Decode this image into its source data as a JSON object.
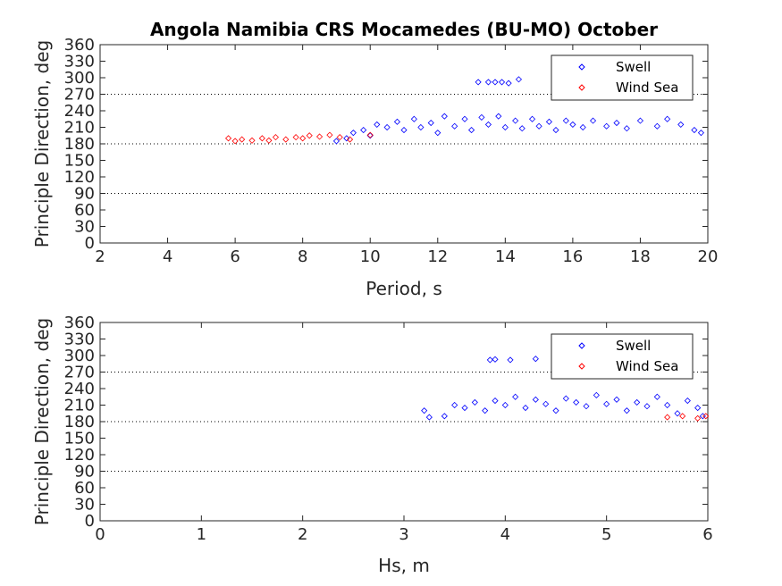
{
  "chart_data": {
    "title": "Angola Namibia CRS Mocamedes (BU-MO) October",
    "legend_entries": [
      "Swell",
      "Wind Sea"
    ],
    "colors": {
      "swell": "#0000ff",
      "wind_sea": "#ff0000",
      "axis": "#262626",
      "reference_line": "#000000"
    },
    "legend_placement": "top-right",
    "grid": "off",
    "reference_lines_y": [
      90,
      180,
      270
    ],
    "panels": [
      {
        "type": "scatter",
        "xlabel": "Period, s",
        "ylabel": "Principle Direction, deg",
        "xlim": [
          2,
          20
        ],
        "ylim": [
          0,
          360
        ],
        "xticks": [
          2,
          4,
          6,
          8,
          10,
          12,
          14,
          16,
          18,
          20
        ],
        "yticks": [
          0,
          30,
          60,
          90,
          120,
          150,
          180,
          210,
          240,
          270,
          300,
          330,
          360
        ],
        "series": [
          {
            "name": "Swell",
            "color": "#0000ff",
            "points": [
              [
                9.0,
                185
              ],
              [
                9.3,
                190
              ],
              [
                9.5,
                200
              ],
              [
                9.8,
                205
              ],
              [
                10.0,
                195
              ],
              [
                10.2,
                215
              ],
              [
                10.5,
                210
              ],
              [
                10.8,
                220
              ],
              [
                11.0,
                205
              ],
              [
                11.3,
                225
              ],
              [
                11.5,
                210
              ],
              [
                11.8,
                218
              ],
              [
                12.0,
                200
              ],
              [
                12.2,
                230
              ],
              [
                12.5,
                212
              ],
              [
                12.8,
                225
              ],
              [
                13.0,
                205
              ],
              [
                13.3,
                228
              ],
              [
                13.5,
                215
              ],
              [
                13.8,
                230
              ],
              [
                14.0,
                210
              ],
              [
                14.3,
                222
              ],
              [
                14.5,
                208
              ],
              [
                14.8,
                225
              ],
              [
                15.0,
                212
              ],
              [
                15.3,
                220
              ],
              [
                15.5,
                205
              ],
              [
                15.8,
                222
              ],
              [
                16.0,
                215
              ],
              [
                16.3,
                210
              ],
              [
                16.6,
                222
              ],
              [
                17.0,
                212
              ],
              [
                17.3,
                218
              ],
              [
                17.6,
                208
              ],
              [
                18.0,
                222
              ],
              [
                18.5,
                212
              ],
              [
                18.8,
                225
              ],
              [
                19.2,
                215
              ],
              [
                19.6,
                205
              ],
              [
                19.8,
                200
              ],
              [
                13.2,
                292
              ],
              [
                13.5,
                292
              ],
              [
                13.7,
                292
              ],
              [
                13.9,
                292
              ],
              [
                14.1,
                290
              ],
              [
                14.4,
                297
              ]
            ]
          },
          {
            "name": "Wind Sea",
            "color": "#ff0000",
            "points": [
              [
                5.8,
                190
              ],
              [
                6.0,
                185
              ],
              [
                6.2,
                188
              ],
              [
                6.5,
                186
              ],
              [
                6.8,
                190
              ],
              [
                7.0,
                186
              ],
              [
                7.2,
                192
              ],
              [
                7.5,
                188
              ],
              [
                7.8,
                192
              ],
              [
                8.0,
                190
              ],
              [
                8.2,
                195
              ],
              [
                8.5,
                193
              ],
              [
                8.8,
                196
              ],
              [
                9.1,
                192
              ],
              [
                9.4,
                188
              ],
              [
                10.0,
                196
              ]
            ]
          }
        ]
      },
      {
        "type": "scatter",
        "xlabel": "Hs, m",
        "ylabel": "Principle Direction, deg",
        "xlim": [
          0,
          6
        ],
        "ylim": [
          0,
          360
        ],
        "xticks": [
          0,
          1,
          2,
          3,
          4,
          5,
          6
        ],
        "yticks": [
          0,
          30,
          60,
          90,
          120,
          150,
          180,
          210,
          240,
          270,
          300,
          330,
          360
        ],
        "series": [
          {
            "name": "Swell",
            "color": "#0000ff",
            "points": [
              [
                3.2,
                200
              ],
              [
                3.25,
                188
              ],
              [
                3.4,
                190
              ],
              [
                3.5,
                210
              ],
              [
                3.6,
                205
              ],
              [
                3.7,
                215
              ],
              [
                3.8,
                200
              ],
              [
                3.9,
                218
              ],
              [
                4.0,
                210
              ],
              [
                4.1,
                225
              ],
              [
                4.2,
                205
              ],
              [
                4.3,
                220
              ],
              [
                4.4,
                212
              ],
              [
                4.5,
                200
              ],
              [
                4.6,
                222
              ],
              [
                4.7,
                215
              ],
              [
                4.8,
                208
              ],
              [
                4.9,
                228
              ],
              [
                5.0,
                212
              ],
              [
                5.1,
                220
              ],
              [
                5.2,
                200
              ],
              [
                5.3,
                215
              ],
              [
                5.4,
                208
              ],
              [
                5.5,
                225
              ],
              [
                5.6,
                210
              ],
              [
                5.7,
                195
              ],
              [
                5.8,
                218
              ],
              [
                5.9,
                205
              ],
              [
                5.95,
                190
              ],
              [
                3.85,
                292
              ],
              [
                3.9,
                293
              ],
              [
                4.05,
                292
              ],
              [
                4.3,
                294
              ]
            ]
          },
          {
            "name": "Wind Sea",
            "color": "#ff0000",
            "points": [
              [
                5.6,
                188
              ],
              [
                5.75,
                190
              ],
              [
                5.9,
                186
              ],
              [
                5.98,
                190
              ]
            ]
          }
        ]
      }
    ]
  }
}
